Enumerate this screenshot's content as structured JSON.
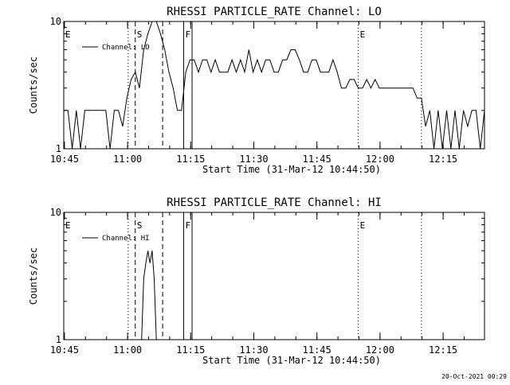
{
  "footer_timestamp": "20-Oct-2021 00:29",
  "chart_data": [
    {
      "type": "line",
      "title": "RHESSI PARTICLE_RATE Channel: LO",
      "xlabel": "Start Time (31-Mar-12 10:44:50)",
      "ylabel": "Counts/sec",
      "y_scale": "log",
      "ylim": [
        1,
        10
      ],
      "y_ticks": [
        {
          "v": 1,
          "label": "1"
        },
        {
          "v": 10,
          "label": "10"
        }
      ],
      "xlim_minutes": [
        0,
        100
      ],
      "x_ticks": [
        {
          "v": 0.17,
          "label": "10:45"
        },
        {
          "v": 15.17,
          "label": "11:00"
        },
        {
          "v": 30.17,
          "label": "11:15"
        },
        {
          "v": 45.17,
          "label": "11:30"
        },
        {
          "v": 60.17,
          "label": "11:45"
        },
        {
          "v": 75.17,
          "label": "12:00"
        },
        {
          "v": 90.17,
          "label": "12:15"
        }
      ],
      "legend": {
        "position": "top-left",
        "label": "Channel:  LO"
      },
      "markers": [
        {
          "label": "E",
          "x": 0.0,
          "style": "dotted",
          "label_side": "right"
        },
        {
          "label": "",
          "x": 15.3,
          "style": "dotted"
        },
        {
          "label": "S",
          "x": 17.0,
          "style": "dashed",
          "label_side": "right"
        },
        {
          "label": "",
          "x": 23.5,
          "style": "dashed"
        },
        {
          "label": "F",
          "x": 28.5,
          "style": "solid",
          "label_side": "right"
        },
        {
          "label": "",
          "x": 30.5,
          "style": "solid"
        },
        {
          "label": "E",
          "x": 70.0,
          "style": "dotted",
          "label_side": "right"
        },
        {
          "label": "",
          "x": 85.0,
          "style": "dotted"
        }
      ],
      "series": [
        {
          "name": "Channel:  LO",
          "x": [
            0,
            1,
            2,
            3,
            4,
            5,
            6,
            7,
            8,
            9,
            10,
            11,
            12,
            13,
            14,
            15,
            16,
            17,
            18,
            19,
            20,
            21,
            22,
            23,
            24,
            25,
            26,
            27,
            28,
            29,
            30,
            31,
            32,
            33,
            34,
            35,
            36,
            37,
            38,
            39,
            40,
            41,
            42,
            43,
            44,
            45,
            46,
            47,
            48,
            49,
            50,
            51,
            52,
            53,
            54,
            55,
            56,
            57,
            58,
            59,
            60,
            61,
            62,
            63,
            64,
            65,
            66,
            67,
            68,
            69,
            70,
            71,
            72,
            73,
            74,
            75,
            76,
            77,
            78,
            79,
            80,
            81,
            82,
            83,
            84,
            85,
            86,
            87,
            88,
            89,
            90,
            91,
            92,
            93,
            94,
            95,
            96,
            97,
            98,
            99,
            100
          ],
          "y": [
            2,
            2,
            1,
            2,
            1,
            2,
            2,
            2,
            2,
            2,
            2,
            1,
            2,
            2,
            1.5,
            2.5,
            3.5,
            4,
            3,
            6,
            8,
            10,
            10,
            8,
            6,
            4,
            3,
            2,
            2,
            4,
            5,
            5,
            4,
            5,
            5,
            4,
            5,
            4,
            4,
            4,
            5,
            4,
            5,
            4,
            6,
            4,
            5,
            4,
            5,
            5,
            4,
            4,
            5,
            5,
            6,
            6,
            5,
            4,
            4,
            5,
            5,
            4,
            4,
            4,
            5,
            4,
            3,
            3,
            3.5,
            3.5,
            3,
            3,
            3.5,
            3,
            3.5,
            3,
            3,
            3,
            3,
            3,
            3,
            3,
            3,
            3,
            2.5,
            2.5,
            1.5,
            2,
            1,
            2,
            1,
            2,
            1,
            2,
            1,
            2,
            1.5,
            2,
            2,
            1,
            2
          ]
        }
      ]
    },
    {
      "type": "line",
      "title": "RHESSI PARTICLE_RATE Channel: HI",
      "xlabel": "Start Time (31-Mar-12 10:44:50)",
      "ylabel": "Counts/sec",
      "y_scale": "log",
      "ylim": [
        1,
        10
      ],
      "y_ticks": [
        {
          "v": 1,
          "label": "1"
        },
        {
          "v": 10,
          "label": "10"
        }
      ],
      "xlim_minutes": [
        0,
        100
      ],
      "x_ticks": [
        {
          "v": 0.17,
          "label": "10:45"
        },
        {
          "v": 15.17,
          "label": "11:00"
        },
        {
          "v": 30.17,
          "label": "11:15"
        },
        {
          "v": 45.17,
          "label": "11:30"
        },
        {
          "v": 60.17,
          "label": "11:45"
        },
        {
          "v": 75.17,
          "label": "12:00"
        },
        {
          "v": 90.17,
          "label": "12:15"
        }
      ],
      "legend": {
        "position": "top-left",
        "label": "Channel:  HI"
      },
      "markers": [
        {
          "label": "E",
          "x": 0.0,
          "style": "dotted",
          "label_side": "right"
        },
        {
          "label": "",
          "x": 15.3,
          "style": "dotted"
        },
        {
          "label": "S",
          "x": 17.0,
          "style": "dashed",
          "label_side": "right"
        },
        {
          "label": "",
          "x": 23.5,
          "style": "dashed"
        },
        {
          "label": "F",
          "x": 28.5,
          "style": "solid",
          "label_side": "right"
        },
        {
          "label": "",
          "x": 30.5,
          "style": "solid"
        },
        {
          "label": "E",
          "x": 70.0,
          "style": "dotted",
          "label_side": "right"
        },
        {
          "label": "",
          "x": 85.0,
          "style": "dotted"
        }
      ],
      "series": [
        {
          "name": "Channel:  HI",
          "x": [
            17.5,
            18.5,
            19.0,
            19.5,
            20.0,
            20.5,
            21.0,
            21.5,
            22.0,
            22.5
          ],
          "y": [
            1,
            1,
            3,
            4,
            5,
            4,
            5,
            3,
            1,
            1
          ]
        }
      ]
    }
  ]
}
